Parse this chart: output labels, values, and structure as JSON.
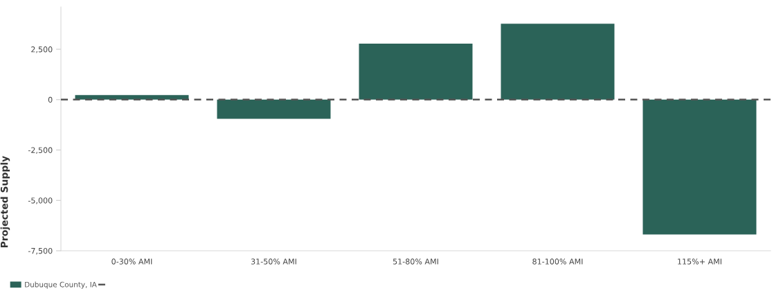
{
  "chart_data": {
    "type": "bar",
    "ylabel": "Projected Supply",
    "categories": [
      "0-30% AMI",
      "31-50% AMI",
      "51-80% AMI",
      "81-100% AMI",
      "115%+ AMI"
    ],
    "series": [
      {
        "name": "Dubuque County, IA",
        "color": "#2b6358",
        "values": [
          230,
          -950,
          2780,
          3770,
          -6690
        ]
      }
    ],
    "ylim": [
      -7500,
      4600
    ],
    "yticks": [
      {
        "value": -7500,
        "label": "-7,500"
      },
      {
        "value": -5000,
        "label": "-5,000"
      },
      {
        "value": -2500,
        "label": "-2,500"
      },
      {
        "value": 0,
        "label": "0"
      },
      {
        "value": 2500,
        "label": "2,500"
      }
    ],
    "ref_lines": [
      {
        "axis": "y",
        "value": 0,
        "label": null,
        "color": "#555555",
        "line_style": "dashed"
      }
    ],
    "grid": false,
    "legend": "bottom left"
  }
}
